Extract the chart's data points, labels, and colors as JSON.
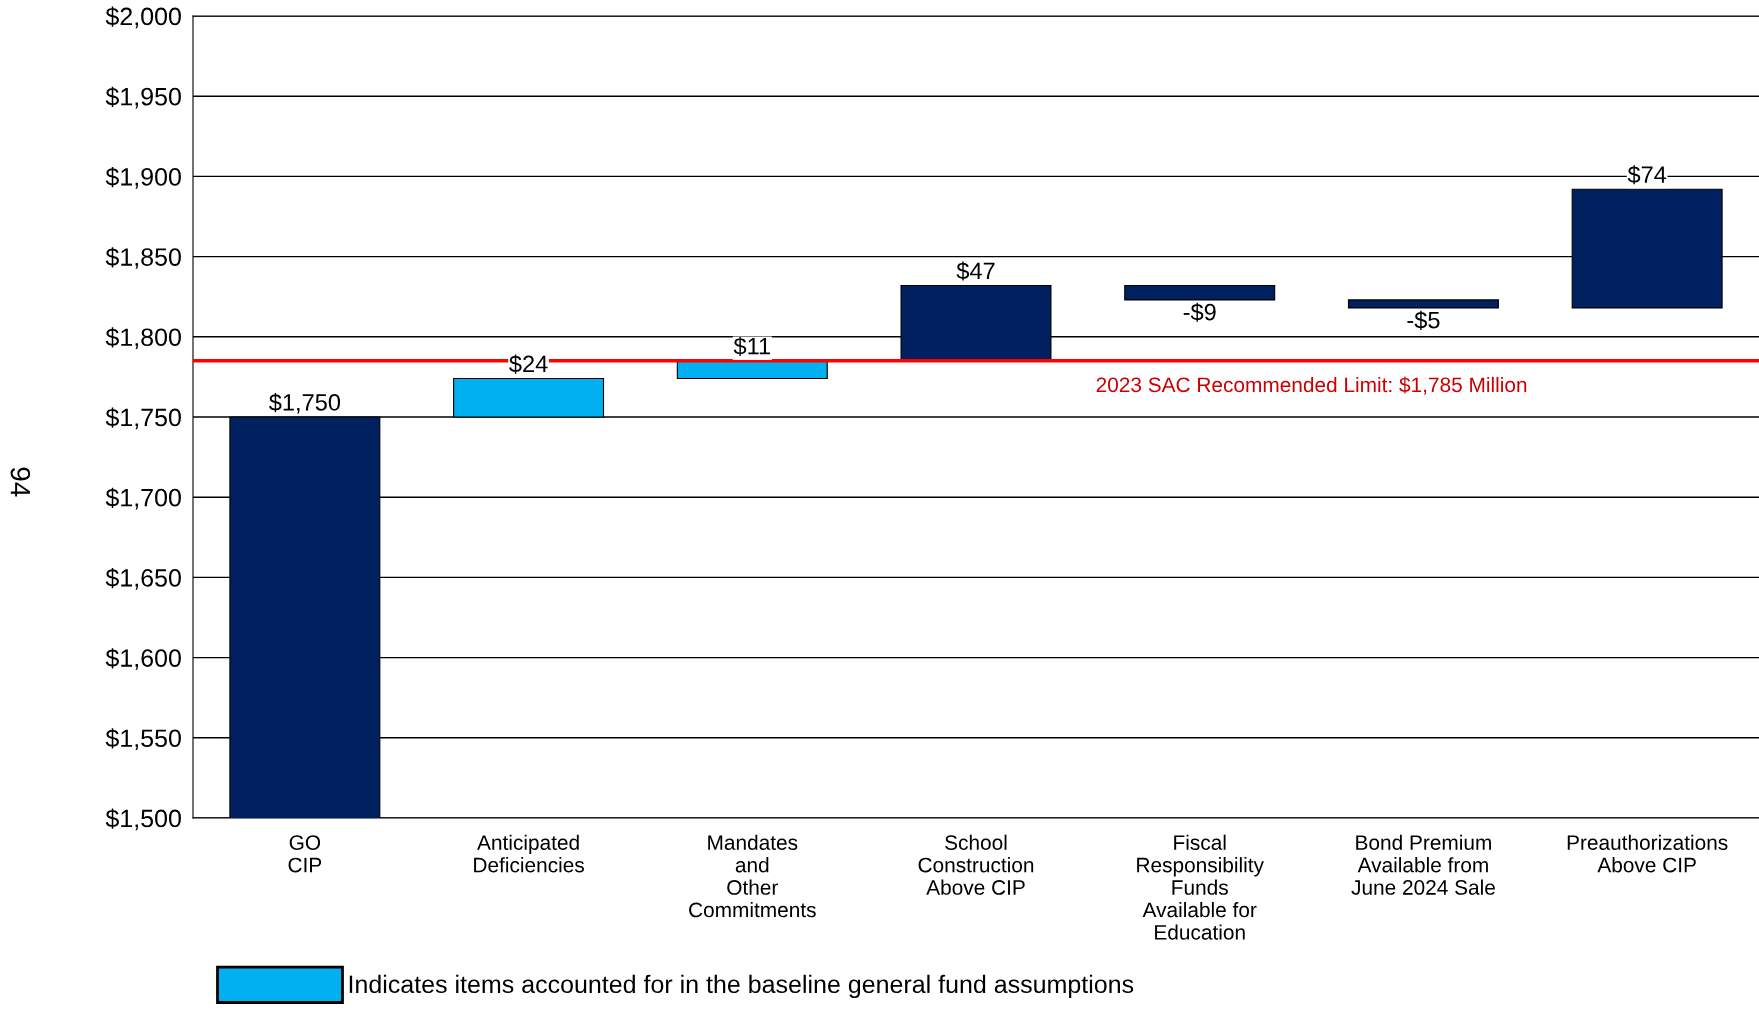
{
  "chart_data": {
    "type": "bar",
    "categories": [
      "GO\nCIP",
      "Anticipated\nDeficiencies",
      "Mandates\nand\nOther\nCommitments",
      "School\nConstruction\nAbove CIP",
      "Fiscal\nResponsibility\nFunds\nAvailable for\nEducation",
      "Bond Premium\nAvailable from\nJune 2024 Sale",
      "Preauthorizations\nAbove CIP"
    ],
    "series": [
      {
        "color": "#002060",
        "base": [
          0,
          null,
          null,
          1785,
          1832,
          1823,
          1818
        ],
        "values": [
          1750,
          null,
          null,
          47,
          -9,
          -5,
          74
        ],
        "value_labels": [
          "$1,750",
          null,
          null,
          "$47",
          "-$9",
          "-$5",
          "$74"
        ]
      },
      {
        "name": "Indicates items accounted for in the baseline general fund assumptions",
        "color": "#00b0f0",
        "base": [
          null,
          1750,
          1774,
          null,
          null,
          null,
          null
        ],
        "values": [
          null,
          24,
          11,
          null,
          null,
          null,
          null
        ],
        "value_labels": [
          null,
          "$24",
          "$11",
          null,
          null,
          null,
          null
        ]
      }
    ],
    "ylim": [
      1500,
      2000
    ],
    "yticks": [
      {
        "value": 1500,
        "label": "$1,500"
      },
      {
        "value": 1550,
        "label": "$1,550"
      },
      {
        "value": 1600,
        "label": "$1,600"
      },
      {
        "value": 1650,
        "label": "$1,650"
      },
      {
        "value": 1700,
        "label": "$1,700"
      },
      {
        "value": 1750,
        "label": "$1,750"
      },
      {
        "value": 1800,
        "label": "$1,800"
      },
      {
        "value": 1850,
        "label": "$1,850"
      },
      {
        "value": 1900,
        "label": "$1,900"
      },
      {
        "value": 1950,
        "label": "$1,950"
      },
      {
        "value": 2000,
        "label": "$2,000"
      }
    ],
    "ref_lines": [
      {
        "axis": "y",
        "value": 1785,
        "label": "2023 SAC Recommended Limit: $1,785 Million",
        "color": "#ff0000"
      }
    ],
    "grid": "y",
    "legend": "bottom left",
    "annotations": [
      "94"
    ]
  }
}
